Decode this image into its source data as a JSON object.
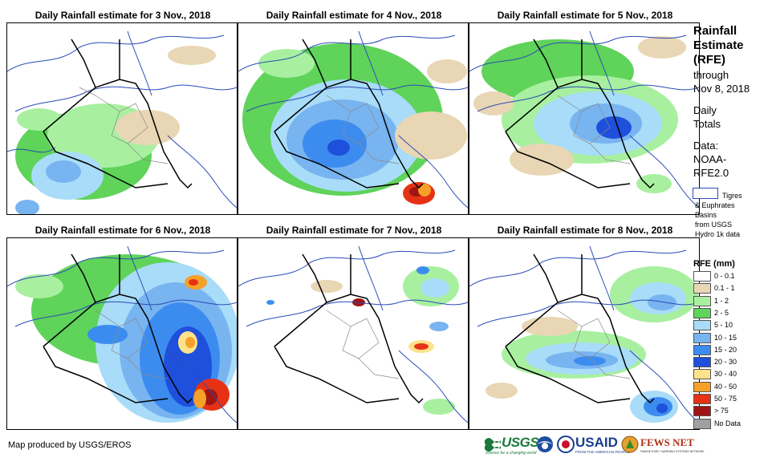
{
  "panels": [
    {
      "title": "Daily Rainfall estimate for 3 Nov., 2018"
    },
    {
      "title": "Daily Rainfall estimate for 4 Nov., 2018"
    },
    {
      "title": "Daily Rainfall estimate for 5 Nov., 2018"
    },
    {
      "title": "Daily Rainfall estimate for 6 Nov., 2018"
    },
    {
      "title": "Daily Rainfall estimate for 7 Nov., 2018"
    },
    {
      "title": "Daily Rainfall estimate for 8 Nov., 2018"
    }
  ],
  "sidebar": {
    "title_lines": [
      "Rainfall",
      "Estimate",
      "(RFE)"
    ],
    "through_lines": [
      "through",
      "Nov 8, 2018"
    ],
    "totals_lines": [
      "Daily",
      "Totals"
    ],
    "data_lines": [
      "Data:",
      "NOAA-",
      "RFE2.0"
    ],
    "basin_lines": [
      "Tigres",
      "& Euphrates",
      "Basins",
      "from USGS",
      "Hydro 1k data"
    ]
  },
  "legend": {
    "title": "RFE (mm)",
    "items": [
      {
        "label": "0 - 0.1",
        "color": "#ffffff"
      },
      {
        "label": "0.1 - 1",
        "color": "#e8d6b4"
      },
      {
        "label": "1 - 2",
        "color": "#a8f0a0"
      },
      {
        "label": "2 - 5",
        "color": "#5fd35a"
      },
      {
        "label": "5 - 10",
        "color": "#a8dcf8"
      },
      {
        "label": "10 - 15",
        "color": "#78b4f0"
      },
      {
        "label": "15 - 20",
        "color": "#3c8cf0"
      },
      {
        "label": "20 - 30",
        "color": "#1e50dc"
      },
      {
        "label": "30 - 40",
        "color": "#fde28a"
      },
      {
        "label": "40 - 50",
        "color": "#f5a028"
      },
      {
        "label": "50 - 75",
        "color": "#e63214"
      },
      {
        "label": "> 75",
        "color": "#a01414"
      },
      {
        "label": "No Data",
        "color": "#a0a0a0"
      }
    ]
  },
  "footer": {
    "credit": "Map produced by USGS/EROS",
    "logos": {
      "usgs": "USGS",
      "usgs_tagline": "science for a changing world",
      "usaid": "USAID",
      "usaid_tagline": "FROM THE AMERICAN PEOPLE",
      "fewsnet": "FEWS NET",
      "fewsnet_tagline": "FAMINE EARLY WARNING SYSTEMS NETWORK"
    }
  }
}
